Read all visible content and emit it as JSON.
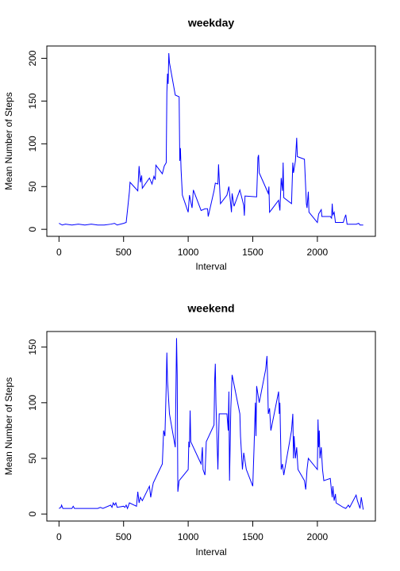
{
  "chart_data": [
    {
      "type": "line",
      "title": "weekday",
      "xlabel": "Interval",
      "ylabel": "Mean Number of Steps",
      "color": "#0000ff",
      "x": [
        0,
        25,
        50,
        100,
        150,
        200,
        250,
        300,
        350,
        400,
        430,
        450,
        500,
        520,
        530,
        545,
        550,
        610,
        615,
        620,
        630,
        640,
        645,
        700,
        720,
        735,
        745,
        750,
        800,
        815,
        830,
        835,
        840,
        845,
        850,
        855,
        900,
        930,
        935,
        940,
        945,
        955,
        1000,
        1010,
        1030,
        1040,
        1100,
        1130,
        1150,
        1155,
        1200,
        1210,
        1230,
        1235,
        1240,
        1250,
        1300,
        1315,
        1330,
        1335,
        1340,
        1355,
        1400,
        1430,
        1435,
        1440,
        1530,
        1540,
        1545,
        1550,
        1620,
        1625,
        1630,
        1650,
        1700,
        1710,
        1720,
        1730,
        1735,
        1740,
        1800,
        1810,
        1815,
        1830,
        1840,
        1845,
        1900,
        1915,
        1920,
        1930,
        1935,
        2000,
        2010,
        2030,
        2035,
        2100,
        2110,
        2115,
        2120,
        2130,
        2140,
        2200,
        2215,
        2220,
        2230,
        2300,
        2320,
        2330,
        2355
      ],
      "values": [
        7,
        5,
        6,
        5,
        6,
        5,
        6,
        5,
        5,
        6,
        7,
        5,
        7,
        8,
        22,
        44,
        55,
        45,
        60,
        74,
        55,
        63,
        48,
        60,
        53,
        62,
        58,
        75,
        65,
        74,
        78,
        160,
        182,
        170,
        206,
        195,
        157,
        155,
        80,
        95,
        70,
        40,
        20,
        40,
        25,
        46,
        22,
        24,
        24,
        15,
        45,
        54,
        53,
        76,
        60,
        30,
        40,
        50,
        28,
        20,
        42,
        27,
        46,
        28,
        16,
        39,
        38,
        84,
        87,
        66,
        42,
        50,
        20,
        24,
        34,
        22,
        60,
        45,
        78,
        37,
        30,
        78,
        66,
        80,
        107,
        85,
        82,
        30,
        25,
        44,
        20,
        8,
        18,
        23,
        15,
        15,
        13,
        30,
        17,
        20,
        8,
        8,
        15,
        17,
        6,
        6,
        7,
        5,
        5
      ],
      "xlim": [
        -94.2,
        2449.2
      ],
      "ylim": [
        -8.2,
        214.4
      ],
      "xticks": [
        0,
        500,
        1000,
        1500,
        2000
      ],
      "yticks": [
        0,
        50,
        100,
        150,
        200
      ]
    },
    {
      "type": "line",
      "title": "weekend",
      "xlabel": "Interval",
      "ylabel": "Mean Number of Steps",
      "color": "#0000ff",
      "x": [
        0,
        15,
        20,
        30,
        100,
        110,
        120,
        200,
        300,
        320,
        340,
        400,
        410,
        420,
        430,
        440,
        450,
        500,
        510,
        520,
        530,
        545,
        600,
        610,
        620,
        630,
        645,
        700,
        710,
        720,
        730,
        800,
        810,
        820,
        830,
        835,
        840,
        850,
        855,
        900,
        910,
        915,
        920,
        930,
        1000,
        1005,
        1010,
        1015,
        1020,
        1100,
        1110,
        1115,
        1130,
        1140,
        1200,
        1205,
        1210,
        1215,
        1230,
        1240,
        1300,
        1310,
        1315,
        1320,
        1330,
        1340,
        1400,
        1405,
        1420,
        1430,
        1450,
        1500,
        1510,
        1520,
        1525,
        1530,
        1550,
        1600,
        1610,
        1615,
        1620,
        1630,
        1640,
        1700,
        1705,
        1710,
        1720,
        1730,
        1740,
        1800,
        1810,
        1815,
        1820,
        1830,
        1840,
        1850,
        1900,
        1910,
        1920,
        1930,
        2000,
        2005,
        2010,
        2015,
        2020,
        2030,
        2040,
        2050,
        2100,
        2110,
        2115,
        2120,
        2130,
        2140,
        2145,
        2200,
        2220,
        2240,
        2250,
        2300,
        2310,
        2330,
        2340,
        2355
      ],
      "values": [
        5,
        6,
        8,
        5,
        5,
        7,
        5,
        5,
        5,
        6,
        5,
        8,
        6,
        10,
        8,
        10,
        6,
        7,
        6,
        8,
        5,
        10,
        7,
        20,
        10,
        15,
        12,
        25,
        15,
        22,
        28,
        45,
        75,
        70,
        115,
        145,
        120,
        100,
        90,
        60,
        158,
        125,
        20,
        30,
        40,
        65,
        60,
        93,
        65,
        45,
        60,
        40,
        35,
        65,
        80,
        120,
        135,
        100,
        40,
        90,
        90,
        75,
        110,
        30,
        95,
        125,
        90,
        70,
        40,
        55,
        40,
        25,
        60,
        100,
        70,
        115,
        100,
        130,
        142,
        120,
        90,
        95,
        75,
        110,
        90,
        100,
        40,
        45,
        35,
        75,
        90,
        50,
        70,
        50,
        60,
        40,
        30,
        22,
        40,
        50,
        40,
        85,
        60,
        75,
        50,
        60,
        40,
        30,
        32,
        20,
        15,
        25,
        12,
        18,
        10,
        6,
        5,
        8,
        6,
        17,
        12,
        5,
        15,
        4
      ],
      "xlim": [
        -94.2,
        2449.2
      ],
      "ylim": [
        -6.3,
        164
      ],
      "xticks": [
        0,
        500,
        1000,
        1500,
        2000
      ],
      "yticks": [
        0,
        50,
        100,
        150
      ]
    }
  ]
}
